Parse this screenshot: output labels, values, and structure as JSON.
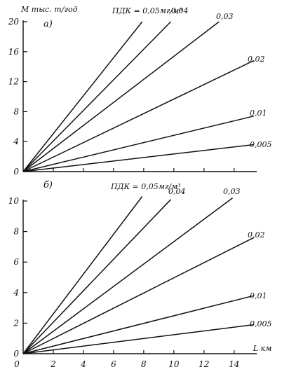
{
  "chart_data": [
    {
      "type": "line",
      "panel_label": "а)",
      "ylabel": "М тыс. т/год",
      "xlabel": "",
      "xlim": [
        0,
        15.5
      ],
      "ylim": [
        0,
        20
      ],
      "y_ticks": [
        0,
        4,
        8,
        12,
        16,
        20
      ],
      "x_ticks": [
        0,
        2,
        4,
        6,
        8,
        10,
        12,
        14
      ],
      "x_tick_labels_visible": false,
      "grid": false,
      "series": [
        {
          "name": "ПДК = 0,05мг/м³",
          "x": [
            0,
            7.9
          ],
          "y": [
            0,
            20
          ]
        },
        {
          "name": "0,04",
          "x": [
            0,
            9.8
          ],
          "y": [
            0,
            20
          ]
        },
        {
          "name": "0,03",
          "x": [
            0,
            13.0
          ],
          "y": [
            0,
            20
          ]
        },
        {
          "name": "0,02",
          "x": [
            0,
            15.3
          ],
          "y": [
            0,
            14.8
          ]
        },
        {
          "name": "0,01",
          "x": [
            0,
            15.3
          ],
          "y": [
            0,
            7.4
          ]
        },
        {
          "name": "0,005",
          "x": [
            0,
            15.3
          ],
          "y": [
            0,
            3.6
          ]
        }
      ]
    },
    {
      "type": "line",
      "panel_label": "б)",
      "ylabel": "",
      "xlabel": "L км",
      "xlim": [
        0,
        15.5
      ],
      "ylim": [
        0,
        10
      ],
      "y_ticks": [
        0,
        2,
        4,
        6,
        8,
        10
      ],
      "x_ticks": [
        0,
        2,
        4,
        6,
        8,
        10,
        12,
        14
      ],
      "x_tick_labels_visible": true,
      "grid": false,
      "series": [
        {
          "name": "ПДК = 0,05мг/м³",
          "x": [
            0,
            7.9
          ],
          "y": [
            0,
            10.3
          ]
        },
        {
          "name": "0,04",
          "x": [
            0,
            9.8
          ],
          "y": [
            0,
            10.1
          ]
        },
        {
          "name": "0,03",
          "x": [
            0,
            13.9
          ],
          "y": [
            0,
            10.2
          ]
        },
        {
          "name": "0,02",
          "x": [
            0,
            15.3
          ],
          "y": [
            0,
            7.6
          ]
        },
        {
          "name": "0,01",
          "x": [
            0,
            15.3
          ],
          "y": [
            0,
            3.8
          ]
        },
        {
          "name": "0,005",
          "x": [
            0,
            15.3
          ],
          "y": [
            0,
            1.9
          ]
        }
      ]
    }
  ]
}
